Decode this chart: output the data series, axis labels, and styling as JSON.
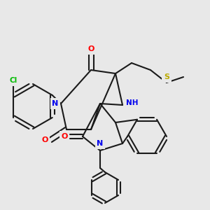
{
  "bg_color": "#e8e8e8",
  "bond_color": "#1a1a1a",
  "bond_width": 1.5,
  "atom_colors": {
    "N": "#0000ee",
    "O": "#ff0000",
    "S": "#bbaa00",
    "Cl": "#00bb00",
    "H": "#009999",
    "C": "#1a1a1a"
  },
  "figsize": [
    3.0,
    3.0
  ],
  "dpi": 100,
  "xlim": [
    0,
    300
  ],
  "ylim": [
    0,
    300
  ]
}
